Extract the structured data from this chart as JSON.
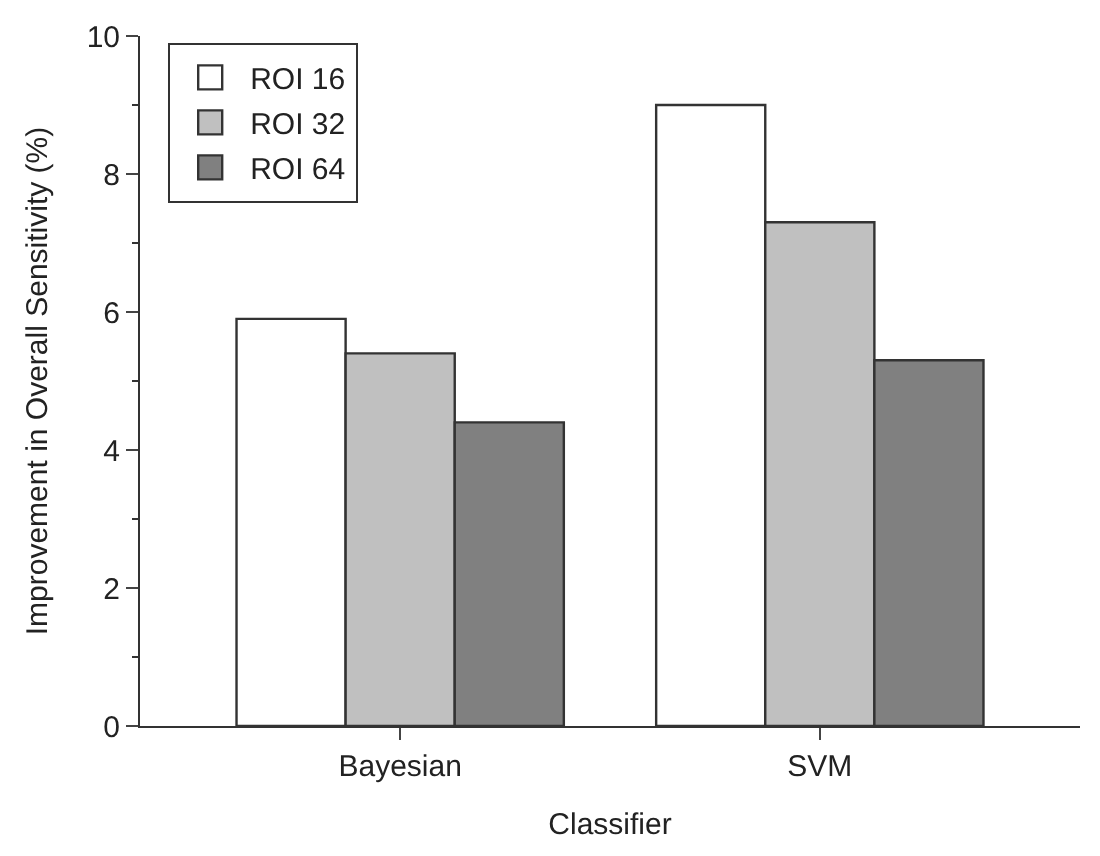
{
  "chart_data": {
    "type": "bar",
    "xlabel": "Classifier",
    "ylabel": "Improvement in Overall Sensitivity (%)",
    "categories": [
      "Bayesian",
      "SVM"
    ],
    "series": [
      {
        "name": "ROI 16",
        "color": "#ffffff",
        "values": [
          5.9,
          9.0
        ]
      },
      {
        "name": "ROI 32",
        "color": "#c0c0c0",
        "values": [
          5.4,
          7.3
        ]
      },
      {
        "name": "ROI 64",
        "color": "#808080",
        "values": [
          4.4,
          5.3
        ]
      }
    ],
    "ylim": [
      0,
      10
    ],
    "yticks": [
      0,
      2,
      4,
      6,
      8,
      10
    ],
    "legend": "top left"
  }
}
